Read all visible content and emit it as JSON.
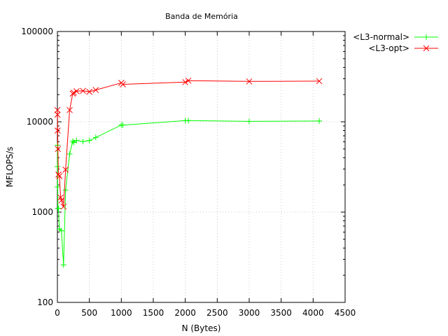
{
  "chart_data": {
    "type": "line",
    "title": "Banda de Memória",
    "xlabel": "N (Bytes)",
    "ylabel": "MFLOPS/s",
    "xlim": [
      0,
      4500
    ],
    "ylim": [
      100,
      100000
    ],
    "yscale": "log",
    "grid": true,
    "legend_position": "outside-top-right",
    "x_ticks": [
      "0",
      "500",
      "1000",
      "1500",
      "2000",
      "2500",
      "3000",
      "3500",
      "4000",
      "4500"
    ],
    "y_ticks": [
      "100",
      "1000",
      "10000",
      "100000"
    ],
    "series": [
      {
        "name": "<L3-normal>",
        "color": "#00ff00",
        "marker": "plus",
        "points": [
          [
            1,
            5500
          ],
          [
            2,
            3200
          ],
          [
            4,
            1900
          ],
          [
            8,
            1100
          ],
          [
            16,
            1100
          ],
          [
            32,
            650
          ],
          [
            64,
            620
          ],
          [
            96,
            260
          ],
          [
            128,
            1750
          ],
          [
            192,
            4400
          ],
          [
            240,
            6100
          ],
          [
            256,
            5900
          ],
          [
            300,
            6200
          ],
          [
            400,
            6050
          ],
          [
            500,
            6200
          ],
          [
            600,
            6700
          ],
          [
            1000,
            9200
          ],
          [
            1024,
            9200
          ],
          [
            2000,
            10300
          ],
          [
            2048,
            10300
          ],
          [
            3000,
            10100
          ],
          [
            4096,
            10200
          ]
        ]
      },
      {
        "name": "<L3-opt>",
        "color": "#ff0000",
        "marker": "cross",
        "points": [
          [
            1,
            13500
          ],
          [
            2,
            12000
          ],
          [
            4,
            8000
          ],
          [
            8,
            5000
          ],
          [
            16,
            2600
          ],
          [
            32,
            2500
          ],
          [
            50,
            1450
          ],
          [
            64,
            1350
          ],
          [
            96,
            1150
          ],
          [
            128,
            2950
          ],
          [
            192,
            13500
          ],
          [
            240,
            20500
          ],
          [
            256,
            21000
          ],
          [
            300,
            21800
          ],
          [
            400,
            22000
          ],
          [
            500,
            21500
          ],
          [
            600,
            22500
          ],
          [
            1000,
            27000
          ],
          [
            1024,
            26000
          ],
          [
            2000,
            27500
          ],
          [
            2048,
            28500
          ],
          [
            3000,
            28000
          ],
          [
            4096,
            28200
          ]
        ]
      }
    ]
  }
}
